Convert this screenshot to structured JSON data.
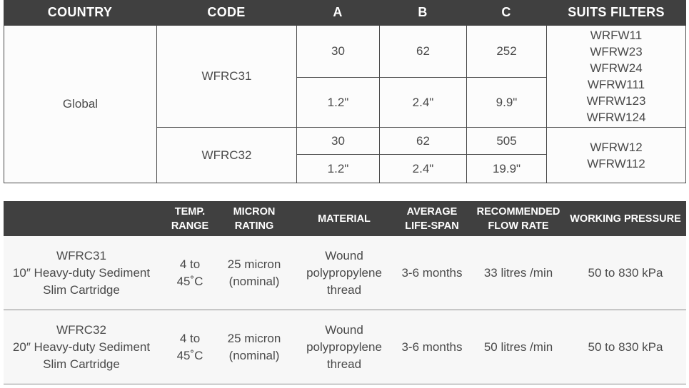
{
  "table1": {
    "headers": [
      "COUNTRY",
      "CODE",
      "A",
      "B",
      "C",
      "SUITS FILTERS"
    ],
    "country": "Global",
    "products": [
      {
        "code": "WFRC31",
        "metric": {
          "a": "30",
          "b": "62",
          "c": "252"
        },
        "imperial": {
          "a": "1.2\"",
          "b": "2.4\"",
          "c": "9.9\""
        },
        "filters": [
          "WRFW11",
          "WFRW23",
          "WFRW24",
          "WFRW111",
          "WFRW123",
          "WFRW124"
        ]
      },
      {
        "code": "WFRC32",
        "metric": {
          "a": "30",
          "b": "62",
          "c": "505"
        },
        "imperial": {
          "a": "1.2\"",
          "b": "2.4\"",
          "c": "19.9\""
        },
        "filters": [
          "WFRW12",
          "WFRW112"
        ]
      }
    ]
  },
  "table2": {
    "headers": {
      "temp": [
        "TEMP.",
        "RANGE"
      ],
      "micron": [
        "MICRON",
        "RATING"
      ],
      "material": "MATERIAL",
      "lifespan": [
        "AVERAGE",
        "LIFE-SPAN"
      ],
      "flow": [
        "RECOMMENDED",
        "FLOW RATE"
      ],
      "pressure": "WORKING PRESSURE"
    },
    "rows": [
      {
        "product": [
          "WFRC31",
          "10″ Heavy-duty Sediment",
          "Slim Cartridge"
        ],
        "temp": [
          "4 to",
          "45˚C"
        ],
        "micron": [
          "25 micron",
          "(nominal)"
        ],
        "material": [
          "Wound",
          "polypropylene",
          "thread"
        ],
        "lifespan": "3-6 months",
        "flow": "33 litres /min",
        "pressure": "50 to 830 kPa"
      },
      {
        "product": [
          "WFRC32",
          "20″ Heavy-duty Sediment",
          "Slim Cartridge"
        ],
        "temp": [
          "4 to",
          "45˚C"
        ],
        "micron": [
          "25 micron",
          "(nominal)"
        ],
        "material": [
          "Wound",
          "polypropylene",
          "thread"
        ],
        "lifespan": "3-6 months",
        "flow": "50 litres /min",
        "pressure": "50 to 830 kPa"
      }
    ]
  }
}
